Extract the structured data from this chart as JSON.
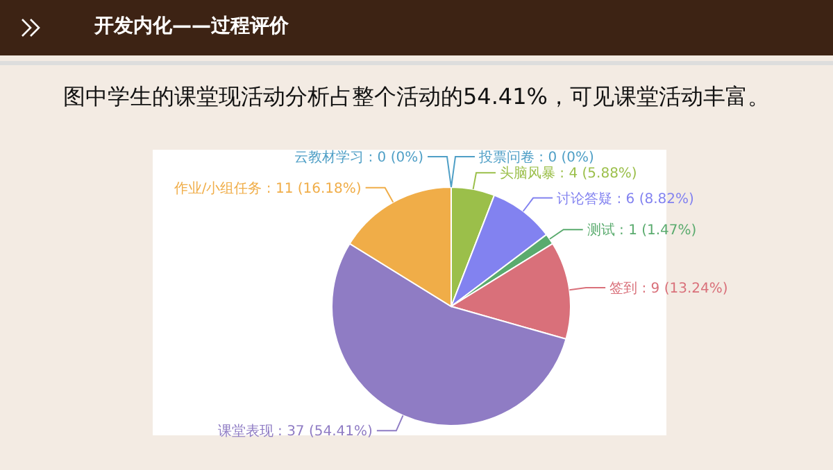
{
  "chart_data": {
    "type": "pie",
    "title": "开发内化——过程评价",
    "subtitle": "图中学生的课堂现活动分析占整个活动的54.41%，可见课堂活动丰富。",
    "categories": [
      "投票问卷",
      "头脑风暴",
      "讨论答疑",
      "测试",
      "签到",
      "课堂表现",
      "作业/小组任务",
      "云教材学习"
    ],
    "values": [
      0,
      4,
      6,
      1,
      9,
      37,
      11,
      0
    ],
    "value_labels": [
      ": 0 (0%)",
      ": 4 (5.88%)",
      ": 6 (8.82%)",
      ": 1 (1.47%)",
      ": 9 (13.24%)",
      ": 37 (54.41%)",
      ": 11 (16.18%)",
      ": 0 (0%)"
    ],
    "colors": [
      "#4f9fc6",
      "#9bbf4a",
      "#8282f0",
      "#5aab6e",
      "#d9707a",
      "#8f7cc4",
      "#f0ad48",
      "#4f9fc6"
    ],
    "legend": false
  }
}
